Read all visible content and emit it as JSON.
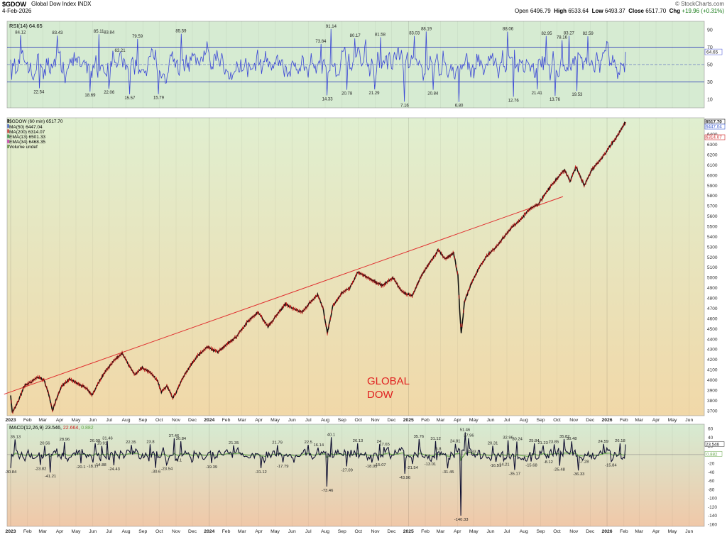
{
  "header": {
    "symbol": "$GDOW",
    "name": "Global Dow Index",
    "exchange": "INDX",
    "date": "4-Feb-2026",
    "brand": "© StockCharts.com",
    "open_label": "Open",
    "open": "6496.79",
    "high_label": "High",
    "high": "6533.64",
    "low_label": "Low",
    "low": "6493.37",
    "close_label": "Close",
    "close": "6517.70",
    "chg_label": "Chg",
    "chg": "+19.96 (+0.31%)"
  },
  "colors": {
    "rsi_bg": "#d6ebd2",
    "rsi_line": "#3a46d6",
    "price_bg_top": "#e0efd0",
    "price_bg_bottom": "#f1d8a8",
    "macd_bg_top": "#d6ebd2",
    "macd_bg_bottom": "#f0c8a8",
    "price_bar": "#111111",
    "price_accent": "#d01515",
    "trendline": "#e03030",
    "macd_line": "#111133",
    "macd_signal": "#6aa84f",
    "annotation": "#e02020"
  },
  "chart_data": [
    {
      "type": "line",
      "panel": "rsi",
      "legend": "RSI(14) 64.65",
      "ylim": [
        0,
        100
      ],
      "y_ticks": [
        10,
        30,
        50,
        70,
        90
      ],
      "reference_lines": [
        30,
        50,
        70
      ],
      "current_value": "64.65",
      "x_range": [
        "2023-01-01",
        "2026-06-30"
      ],
      "peaks": [
        {
          "x": "2023-01-19",
          "y": 84.12
        },
        {
          "x": "2023-03-28",
          "y": 83.43
        },
        {
          "x": "2023-06-12",
          "y": 85.11
        },
        {
          "x": "2023-07-01",
          "y": 83.84
        },
        {
          "x": "2023-07-21",
          "y": 63.21
        },
        {
          "x": "2023-08-22",
          "y": 79.59
        },
        {
          "x": "2023-11-10",
          "y": 85.59
        },
        {
          "x": "2024-07-24",
          "y": 73.84
        },
        {
          "x": "2024-08-12",
          "y": 91.14
        },
        {
          "x": "2024-09-25",
          "y": 80.17
        },
        {
          "x": "2024-11-10",
          "y": 81.58
        },
        {
          "x": "2025-01-12",
          "y": 83.03
        },
        {
          "x": "2025-02-03",
          "y": 88.19
        },
        {
          "x": "2025-07-03",
          "y": 88.06
        },
        {
          "x": "2025-09-12",
          "y": 82.95
        },
        {
          "x": "2025-10-10",
          "y": 78.16
        },
        {
          "x": "2025-10-23",
          "y": 83.27
        },
        {
          "x": "2025-11-27",
          "y": 82.59
        }
      ],
      "troughs": [
        {
          "x": "2023-02-22",
          "y": 22.54
        },
        {
          "x": "2023-05-27",
          "y": 18.69
        },
        {
          "x": "2023-07-01",
          "y": 22.06
        },
        {
          "x": "2023-08-08",
          "y": 15.57
        },
        {
          "x": "2023-09-30",
          "y": 15.79
        },
        {
          "x": "2024-08-05",
          "y": 14.33
        },
        {
          "x": "2024-09-10",
          "y": 20.78
        },
        {
          "x": "2024-10-30",
          "y": 21.29
        },
        {
          "x": "2024-12-25",
          "y": 7.16
        },
        {
          "x": "2025-02-15",
          "y": 20.84
        },
        {
          "x": "2025-04-04",
          "y": 6.8
        },
        {
          "x": "2025-07-13",
          "y": 12.76
        },
        {
          "x": "2025-08-25",
          "y": 21.41
        },
        {
          "x": "2025-09-27",
          "y": 13.76
        },
        {
          "x": "2025-11-07",
          "y": 19.53
        }
      ]
    },
    {
      "type": "line",
      "panel": "price",
      "legend": [
        "$GDOW (60 min) 6517.70",
        "MA(50) 6447.04",
        "MA(200) 6314.07",
        "EMA(13) 6501.33",
        "EMA(34) 6468.35",
        "Volume undef"
      ],
      "legend_colors": [
        "#111111",
        "#3355cc",
        "#cc2222",
        "#228833",
        "#cc22aa",
        "#558833"
      ],
      "ylim": [
        3650,
        6560
      ],
      "y_ticks": [
        3700,
        3800,
        3900,
        4000,
        4100,
        4200,
        4300,
        4400,
        4500,
        4600,
        4700,
        4800,
        4900,
        5000,
        5100,
        5200,
        5300,
        5400,
        5500,
        5600,
        5700,
        5800,
        5900,
        6000,
        6100,
        6200,
        6300,
        6400
      ],
      "price_labels": [
        {
          "text": "6517.70",
          "color": "#111111"
        },
        {
          "text": "6447.04",
          "color": "#3355cc"
        },
        {
          "text": "6314.07",
          "color": "#cc2222"
        }
      ],
      "x_labels": [
        "2023",
        "Feb",
        "Mar",
        "Apr",
        "May",
        "Jun",
        "Jul",
        "Aug",
        "Sep",
        "Oct",
        "Nov",
        "Dec",
        "2024",
        "Feb",
        "Mar",
        "Apr",
        "May",
        "Jun",
        "Jul",
        "Aug",
        "Sep",
        "Oct",
        "Nov",
        "Dec",
        "2025",
        "Feb",
        "Mar",
        "Apr",
        "May",
        "Jun",
        "Jul",
        "Aug",
        "Sep",
        "Oct",
        "Nov",
        "Dec",
        "2026",
        "Feb",
        "Mar",
        "Apr",
        "May",
        "Jun"
      ],
      "x_range": [
        "2023-01-01",
        "2026-06-30"
      ],
      "annotation": "GLOBAL\nDOW",
      "trendline": [
        {
          "x": "2022-12-20",
          "y": 3860
        },
        {
          "x": "2025-10-12",
          "y": 5790
        }
      ],
      "path": [
        {
          "x": "2023-01-01",
          "y": 3850
        },
        {
          "x": "2023-01-04",
          "y": 3680
        },
        {
          "x": "2023-01-14",
          "y": 3780
        },
        {
          "x": "2023-01-26",
          "y": 3940
        },
        {
          "x": "2023-02-10",
          "y": 3990
        },
        {
          "x": "2023-02-20",
          "y": 4030
        },
        {
          "x": "2023-03-03",
          "y": 4000
        },
        {
          "x": "2023-03-12",
          "y": 3860
        },
        {
          "x": "2023-03-19",
          "y": 3700
        },
        {
          "x": "2023-03-26",
          "y": 3810
        },
        {
          "x": "2023-04-05",
          "y": 3940
        },
        {
          "x": "2023-04-20",
          "y": 4010
        },
        {
          "x": "2023-05-05",
          "y": 3960
        },
        {
          "x": "2023-05-20",
          "y": 3920
        },
        {
          "x": "2023-05-31",
          "y": 3850
        },
        {
          "x": "2023-06-10",
          "y": 3960
        },
        {
          "x": "2023-06-25",
          "y": 4090
        },
        {
          "x": "2023-07-10",
          "y": 4190
        },
        {
          "x": "2023-07-25",
          "y": 4260
        },
        {
          "x": "2023-08-05",
          "y": 4150
        },
        {
          "x": "2023-08-18",
          "y": 4050
        },
        {
          "x": "2023-08-30",
          "y": 4120
        },
        {
          "x": "2023-09-15",
          "y": 4070
        },
        {
          "x": "2023-09-28",
          "y": 3990
        },
        {
          "x": "2023-10-05",
          "y": 3880
        },
        {
          "x": "2023-10-15",
          "y": 3940
        },
        {
          "x": "2023-10-26",
          "y": 3820
        },
        {
          "x": "2023-11-03",
          "y": 3900
        },
        {
          "x": "2023-11-12",
          "y": 4010
        },
        {
          "x": "2023-11-25",
          "y": 4120
        },
        {
          "x": "2023-12-10",
          "y": 4230
        },
        {
          "x": "2023-12-28",
          "y": 4320
        },
        {
          "x": "2024-01-17",
          "y": 4270
        },
        {
          "x": "2024-01-31",
          "y": 4340
        },
        {
          "x": "2024-02-20",
          "y": 4420
        },
        {
          "x": "2024-03-10",
          "y": 4560
        },
        {
          "x": "2024-03-31",
          "y": 4660
        },
        {
          "x": "2024-04-18",
          "y": 4520
        },
        {
          "x": "2024-05-05",
          "y": 4640
        },
        {
          "x": "2024-05-20",
          "y": 4740
        },
        {
          "x": "2024-06-05",
          "y": 4690
        },
        {
          "x": "2024-06-20",
          "y": 4660
        },
        {
          "x": "2024-07-05",
          "y": 4760
        },
        {
          "x": "2024-07-18",
          "y": 4830
        },
        {
          "x": "2024-07-28",
          "y": 4700
        },
        {
          "x": "2024-08-05",
          "y": 4460
        },
        {
          "x": "2024-08-15",
          "y": 4720
        },
        {
          "x": "2024-09-01",
          "y": 4850
        },
        {
          "x": "2024-09-15",
          "y": 4900
        },
        {
          "x": "2024-09-30",
          "y": 5050
        },
        {
          "x": "2024-10-15",
          "y": 5010
        },
        {
          "x": "2024-10-31",
          "y": 4960
        },
        {
          "x": "2024-11-15",
          "y": 4920
        },
        {
          "x": "2024-12-03",
          "y": 5000
        },
        {
          "x": "2024-12-20",
          "y": 4860
        },
        {
          "x": "2025-01-08",
          "y": 4820
        },
        {
          "x": "2025-01-25",
          "y": 5020
        },
        {
          "x": "2025-02-10",
          "y": 5150
        },
        {
          "x": "2025-02-25",
          "y": 5270
        },
        {
          "x": "2025-03-10",
          "y": 5180
        },
        {
          "x": "2025-03-25",
          "y": 5240
        },
        {
          "x": "2025-04-02",
          "y": 5020
        },
        {
          "x": "2025-04-05",
          "y": 4700
        },
        {
          "x": "2025-04-08",
          "y": 4450
        },
        {
          "x": "2025-04-14",
          "y": 4760
        },
        {
          "x": "2025-04-25",
          "y": 4920
        },
        {
          "x": "2025-05-10",
          "y": 5090
        },
        {
          "x": "2025-05-25",
          "y": 5210
        },
        {
          "x": "2025-06-10",
          "y": 5290
        },
        {
          "x": "2025-06-25",
          "y": 5390
        },
        {
          "x": "2025-07-10",
          "y": 5490
        },
        {
          "x": "2025-07-25",
          "y": 5560
        },
        {
          "x": "2025-08-10",
          "y": 5660
        },
        {
          "x": "2025-08-28",
          "y": 5720
        },
        {
          "x": "2025-09-15",
          "y": 5860
        },
        {
          "x": "2025-09-30",
          "y": 5960
        },
        {
          "x": "2025-10-15",
          "y": 6050
        },
        {
          "x": "2025-10-25",
          "y": 5940
        },
        {
          "x": "2025-11-05",
          "y": 6080
        },
        {
          "x": "2025-11-20",
          "y": 5900
        },
        {
          "x": "2025-12-05",
          "y": 6060
        },
        {
          "x": "2025-12-20",
          "y": 6150
        },
        {
          "x": "2026-01-05",
          "y": 6270
        },
        {
          "x": "2026-01-15",
          "y": 6340
        },
        {
          "x": "2026-01-25",
          "y": 6430
        },
        {
          "x": "2026-02-04",
          "y": 6518
        }
      ]
    },
    {
      "type": "line",
      "panel": "macd",
      "legend": "MACD(12,26,9) 23.546, 22.664, 0.882",
      "legend_parts": [
        "MACD(12,26,9) 23.546, ",
        "22.664, ",
        "0.882"
      ],
      "ylim": [
        -165,
        70
      ],
      "y_ticks": [
        60,
        40,
        20,
        0,
        -20,
        -40,
        -60,
        -80,
        -100,
        -120,
        -140,
        -160
      ],
      "value_labels": [
        "23.546",
        "0.882"
      ],
      "x_range": [
        "2023-01-01",
        "2026-06-30"
      ],
      "extremes": [
        {
          "x": "2023-01-10",
          "y": 35.13
        },
        {
          "x": "2023-01-01",
          "y": -30.84
        },
        {
          "x": "2023-02-25",
          "y": -23.82
        },
        {
          "x": "2023-03-15",
          "y": -41.21
        },
        {
          "x": "2023-03-05",
          "y": 20.56
        },
        {
          "x": "2023-04-10",
          "y": 28.96
        },
        {
          "x": "2023-05-10",
          "y": -20.1
        },
        {
          "x": "2023-06-01",
          "y": -18.17
        },
        {
          "x": "2023-06-15",
          "y": -14.88
        },
        {
          "x": "2023-07-10",
          "y": -24.43
        },
        {
          "x": "2023-06-05",
          "y": 26.09
        },
        {
          "x": "2023-06-18",
          "y": 19.91
        },
        {
          "x": "2023-06-28",
          "y": 31.46
        },
        {
          "x": "2023-08-10",
          "y": 22.35
        },
        {
          "x": "2023-09-15",
          "y": 23.8
        },
        {
          "x": "2023-09-25",
          "y": -30.6
        },
        {
          "x": "2023-10-15",
          "y": -23.54
        },
        {
          "x": "2023-11-05",
          "y": -4.1
        },
        {
          "x": "2023-10-28",
          "y": 37.46
        },
        {
          "x": "2023-11-10",
          "y": 30.84
        },
        {
          "x": "2024-01-05",
          "y": -19.39
        },
        {
          "x": "2024-02-15",
          "y": 21.35
        },
        {
          "x": "2024-04-05",
          "y": -31.12
        },
        {
          "x": "2024-05-05",
          "y": 21.79
        },
        {
          "x": "2024-05-15",
          "y": -17.79
        },
        {
          "x": "2024-07-01",
          "y": 22.5
        },
        {
          "x": "2024-07-20",
          "y": 16.14
        },
        {
          "x": "2024-08-05",
          "y": -73.46
        },
        {
          "x": "2024-08-12",
          "y": 40.1
        },
        {
          "x": "2024-09-10",
          "y": -27.09
        },
        {
          "x": "2024-09-30",
          "y": 26.13
        },
        {
          "x": "2024-10-25",
          "y": -18.05
        },
        {
          "x": "2024-11-10",
          "y": -15.07
        },
        {
          "x": "2024-11-08",
          "y": 24.0
        },
        {
          "x": "2024-11-18",
          "y": 17.65
        },
        {
          "x": "2024-12-25",
          "y": -43.96
        },
        {
          "x": "2025-01-08",
          "y": -21.54
        },
        {
          "x": "2025-01-20",
          "y": 35.76
        },
        {
          "x": "2025-02-10",
          "y": -13.01
        },
        {
          "x": "2025-02-20",
          "y": 31.12
        },
        {
          "x": "2025-02-25",
          "y": 6.8
        },
        {
          "x": "2025-03-15",
          "y": -31.45
        },
        {
          "x": "2025-03-28",
          "y": 24.81
        },
        {
          "x": "2025-04-08",
          "y": -140.33
        },
        {
          "x": "2025-04-15",
          "y": 51.46
        },
        {
          "x": "2025-04-22",
          "y": 37.96
        },
        {
          "x": "2025-04-28",
          "y": 0.33
        },
        {
          "x": "2025-06-05",
          "y": 20.31
        },
        {
          "x": "2025-06-10",
          "y": -16.51
        },
        {
          "x": "2025-06-25",
          "y": -14.21
        },
        {
          "x": "2025-07-03",
          "y": 32.96
        },
        {
          "x": "2025-07-20",
          "y": 30.24
        },
        {
          "x": "2025-07-15",
          "y": -35.17
        },
        {
          "x": "2025-08-15",
          "y": -15.68
        },
        {
          "x": "2025-08-20",
          "y": 25.84
        },
        {
          "x": "2025-09-05",
          "y": 21.23
        },
        {
          "x": "2025-09-15",
          "y": -8.12
        },
        {
          "x": "2025-09-25",
          "y": 23.85
        },
        {
          "x": "2025-10-05",
          "y": -25.48
        },
        {
          "x": "2025-10-15",
          "y": 35.82
        },
        {
          "x": "2025-10-28",
          "y": 30.48
        },
        {
          "x": "2025-11-10",
          "y": -36.33
        },
        {
          "x": "2025-11-20",
          "y": -7.28
        },
        {
          "x": "2025-12-25",
          "y": 24.59
        },
        {
          "x": "2026-01-08",
          "y": -15.84
        },
        {
          "x": "2026-01-25",
          "y": 26.18
        }
      ]
    }
  ]
}
